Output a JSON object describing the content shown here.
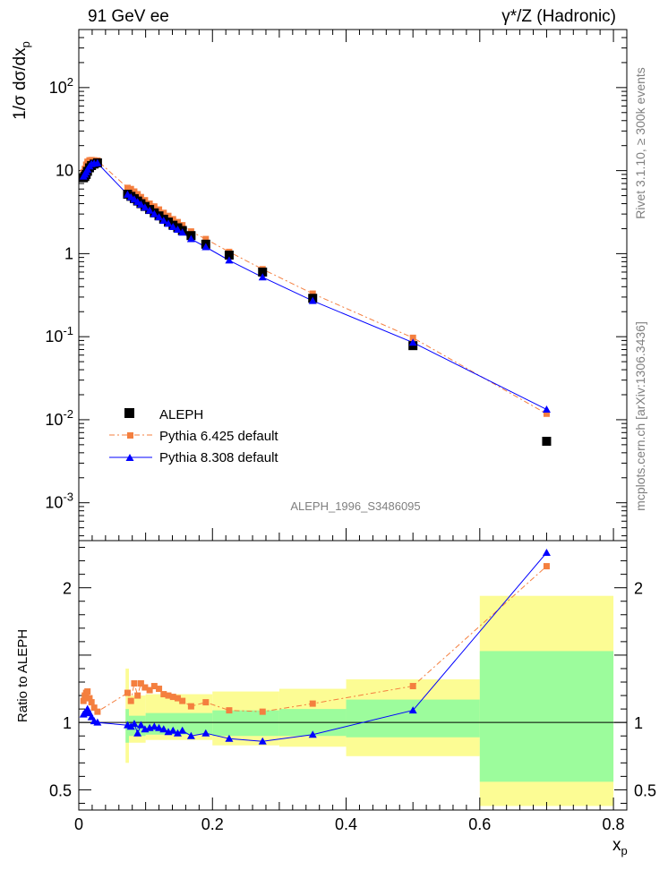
{
  "header": {
    "left": "91 GeV ee",
    "right": "γ*/Z (Hadronic)"
  },
  "side_text": {
    "rivet": "Rivet 3.1.10, ≥ 300k events",
    "mcplots": "mcplots.cern.ch [arXiv:1306.3436]"
  },
  "analysis_id": "ALEPH_1996_S3486095",
  "colors": {
    "data": "#000000",
    "pythia6": "#f47f3f",
    "pythia8": "#0000ff",
    "band_inner": "#9cfc9c",
    "band_outer": "#fcfc94"
  },
  "chart_data": [
    {
      "type": "scatter",
      "panel": "main",
      "ylabel": "1/σ dσ/dx_p",
      "yscale": "log",
      "ylim": [
        0.00035,
        500
      ],
      "xlim": [
        0,
        0.82
      ],
      "y_ticks": [
        {
          "v": 0.001,
          "label": "10^-3"
        },
        {
          "v": 0.01,
          "label": "10^-2"
        },
        {
          "v": 0.1,
          "label": "10^-1"
        },
        {
          "v": 1,
          "label": "1"
        },
        {
          "v": 10,
          "label": "10"
        },
        {
          "v": 100,
          "label": "10^2"
        }
      ],
      "legend_position": "bottom-left",
      "series": [
        {
          "name": "ALEPH",
          "style": "data",
          "points": [
            [
              0.007,
              8.2
            ],
            [
              0.009,
              8.5
            ],
            [
              0.011,
              9.0
            ],
            [
              0.013,
              9.8
            ],
            [
              0.016,
              10.8
            ],
            [
              0.019,
              11.5
            ],
            [
              0.023,
              12.0
            ],
            [
              0.028,
              12.4
            ],
            [
              0.073,
              5.2
            ],
            [
              0.078,
              4.9
            ],
            [
              0.083,
              4.6
            ],
            [
              0.088,
              4.3
            ],
            [
              0.093,
              4.0
            ],
            [
              0.099,
              3.7
            ],
            [
              0.106,
              3.4
            ],
            [
              0.113,
              3.1
            ],
            [
              0.12,
              2.85
            ],
            [
              0.127,
              2.6
            ],
            [
              0.134,
              2.4
            ],
            [
              0.141,
              2.2
            ],
            [
              0.148,
              2.05
            ],
            [
              0.155,
              1.9
            ],
            [
              0.168,
              1.65
            ],
            [
              0.19,
              1.3
            ],
            [
              0.225,
              0.96
            ],
            [
              0.275,
              0.6
            ],
            [
              0.35,
              0.29
            ],
            [
              0.5,
              0.078
            ],
            [
              0.7,
              0.0055
            ]
          ]
        },
        {
          "name": "Pythia 6.425 default",
          "style": "dashdot-square",
          "points": [
            [
              0.007,
              9.5
            ],
            [
              0.009,
              10.5
            ],
            [
              0.011,
              11.8
            ],
            [
              0.013,
              12.8
            ],
            [
              0.016,
              13.3
            ],
            [
              0.019,
              13.4
            ],
            [
              0.023,
              13.3
            ],
            [
              0.028,
              13.2
            ],
            [
              0.073,
              6.2
            ],
            [
              0.078,
              6.0
            ],
            [
              0.083,
              5.6
            ],
            [
              0.088,
              5.2
            ],
            [
              0.093,
              4.8
            ],
            [
              0.099,
              4.4
            ],
            [
              0.106,
              4.0
            ],
            [
              0.113,
              3.7
            ],
            [
              0.12,
              3.4
            ],
            [
              0.127,
              3.1
            ],
            [
              0.134,
              2.85
            ],
            [
              0.141,
              2.6
            ],
            [
              0.148,
              2.4
            ],
            [
              0.155,
              2.2
            ],
            [
              0.168,
              1.85
            ],
            [
              0.19,
              1.5
            ],
            [
              0.225,
              1.05
            ],
            [
              0.275,
              0.65
            ],
            [
              0.35,
              0.33
            ],
            [
              0.5,
              0.097
            ],
            [
              0.7,
              0.0118
            ]
          ]
        },
        {
          "name": "Pythia 8.308 default",
          "style": "solid-triangle",
          "points": [
            [
              0.007,
              8.5
            ],
            [
              0.009,
              9.0
            ],
            [
              0.011,
              9.6
            ],
            [
              0.013,
              10.3
            ],
            [
              0.016,
              11.3
            ],
            [
              0.019,
              12.0
            ],
            [
              0.023,
              12.2
            ],
            [
              0.028,
              12.3
            ],
            [
              0.073,
              5.15
            ],
            [
              0.078,
              4.8
            ],
            [
              0.083,
              4.5
            ],
            [
              0.088,
              4.2
            ],
            [
              0.093,
              3.9
            ],
            [
              0.099,
              3.6
            ],
            [
              0.106,
              3.3
            ],
            [
              0.113,
              3.0
            ],
            [
              0.12,
              2.75
            ],
            [
              0.127,
              2.5
            ],
            [
              0.134,
              2.3
            ],
            [
              0.141,
              2.1
            ],
            [
              0.148,
              1.95
            ],
            [
              0.155,
              1.8
            ],
            [
              0.168,
              1.5
            ],
            [
              0.19,
              1.2
            ],
            [
              0.225,
              0.83
            ],
            [
              0.275,
              0.52
            ],
            [
              0.35,
              0.27
            ],
            [
              0.5,
              0.085
            ],
            [
              0.7,
              0.0133
            ]
          ]
        }
      ]
    },
    {
      "type": "scatter",
      "panel": "ratio",
      "xlabel": "x_p",
      "ylabel": "Ratio to ALEPH",
      "ylim": [
        0.35,
        2.35
      ],
      "xlim": [
        0,
        0.82
      ],
      "x_ticks": [
        "0",
        "0.2",
        "0.4",
        "0.6",
        "0.8"
      ],
      "y_ticks": [
        "0.5",
        "1",
        "2"
      ],
      "bands": [
        {
          "x": [
            0.07,
            0.075
          ],
          "inner": [
            0.85,
            1.1
          ],
          "outer": [
            0.7,
            1.4
          ]
        },
        {
          "x": [
            0.075,
            0.1
          ],
          "inner": [
            0.9,
            1.05
          ],
          "outer": [
            0.85,
            1.2
          ]
        },
        {
          "x": [
            0.1,
            0.2
          ],
          "inner": [
            0.91,
            1.07
          ],
          "outer": [
            0.87,
            1.21
          ]
        },
        {
          "x": [
            0.2,
            0.3
          ],
          "inner": [
            0.9,
            1.09
          ],
          "outer": [
            0.83,
            1.23
          ]
        },
        {
          "x": [
            0.3,
            0.4
          ],
          "inner": [
            0.9,
            1.1
          ],
          "outer": [
            0.82,
            1.25
          ]
        },
        {
          "x": [
            0.4,
            0.6
          ],
          "inner": [
            0.89,
            1.17
          ],
          "outer": [
            0.75,
            1.32
          ]
        },
        {
          "x": [
            0.6,
            0.8
          ],
          "inner": [
            0.56,
            1.53
          ],
          "outer": [
            0.38,
            1.94
          ]
        }
      ],
      "series": [
        {
          "name": "Pythia 6.425 default",
          "points": [
            [
              0.007,
              1.16
            ],
            [
              0.009,
              1.2
            ],
            [
              0.011,
              1.22
            ],
            [
              0.013,
              1.23
            ],
            [
              0.016,
              1.18
            ],
            [
              0.019,
              1.15
            ],
            [
              0.023,
              1.11
            ],
            [
              0.028,
              1.08
            ],
            [
              0.073,
              1.22
            ],
            [
              0.078,
              1.16
            ],
            [
              0.083,
              1.29
            ],
            [
              0.088,
              1.2
            ],
            [
              0.093,
              1.29
            ],
            [
              0.099,
              1.26
            ],
            [
              0.106,
              1.24
            ],
            [
              0.113,
              1.27
            ],
            [
              0.12,
              1.25
            ],
            [
              0.127,
              1.21
            ],
            [
              0.134,
              1.2
            ],
            [
              0.141,
              1.19
            ],
            [
              0.148,
              1.18
            ],
            [
              0.155,
              1.16
            ],
            [
              0.168,
              1.12
            ],
            [
              0.19,
              1.15
            ],
            [
              0.225,
              1.09
            ],
            [
              0.275,
              1.08
            ],
            [
              0.35,
              1.14
            ],
            [
              0.5,
              1.27
            ],
            [
              0.7,
              2.16
            ]
          ]
        },
        {
          "name": "Pythia 8.308 default",
          "points": [
            [
              0.007,
              1.06
            ],
            [
              0.009,
              1.07
            ],
            [
              0.011,
              1.08
            ],
            [
              0.013,
              1.1
            ],
            [
              0.016,
              1.07
            ],
            [
              0.019,
              1.04
            ],
            [
              0.023,
              1.01
            ],
            [
              0.028,
              1.0
            ],
            [
              0.073,
              0.98
            ],
            [
              0.078,
              0.97
            ],
            [
              0.083,
              0.99
            ],
            [
              0.088,
              0.92
            ],
            [
              0.093,
              0.98
            ],
            [
              0.099,
              0.95
            ],
            [
              0.106,
              0.96
            ],
            [
              0.113,
              0.97
            ],
            [
              0.12,
              0.96
            ],
            [
              0.127,
              0.95
            ],
            [
              0.134,
              0.93
            ],
            [
              0.141,
              0.94
            ],
            [
              0.148,
              0.92
            ],
            [
              0.155,
              0.94
            ],
            [
              0.168,
              0.9
            ],
            [
              0.19,
              0.92
            ],
            [
              0.225,
              0.88
            ],
            [
              0.275,
              0.86
            ],
            [
              0.35,
              0.91
            ],
            [
              0.5,
              1.09
            ],
            [
              0.7,
              2.26
            ]
          ]
        }
      ]
    }
  ]
}
